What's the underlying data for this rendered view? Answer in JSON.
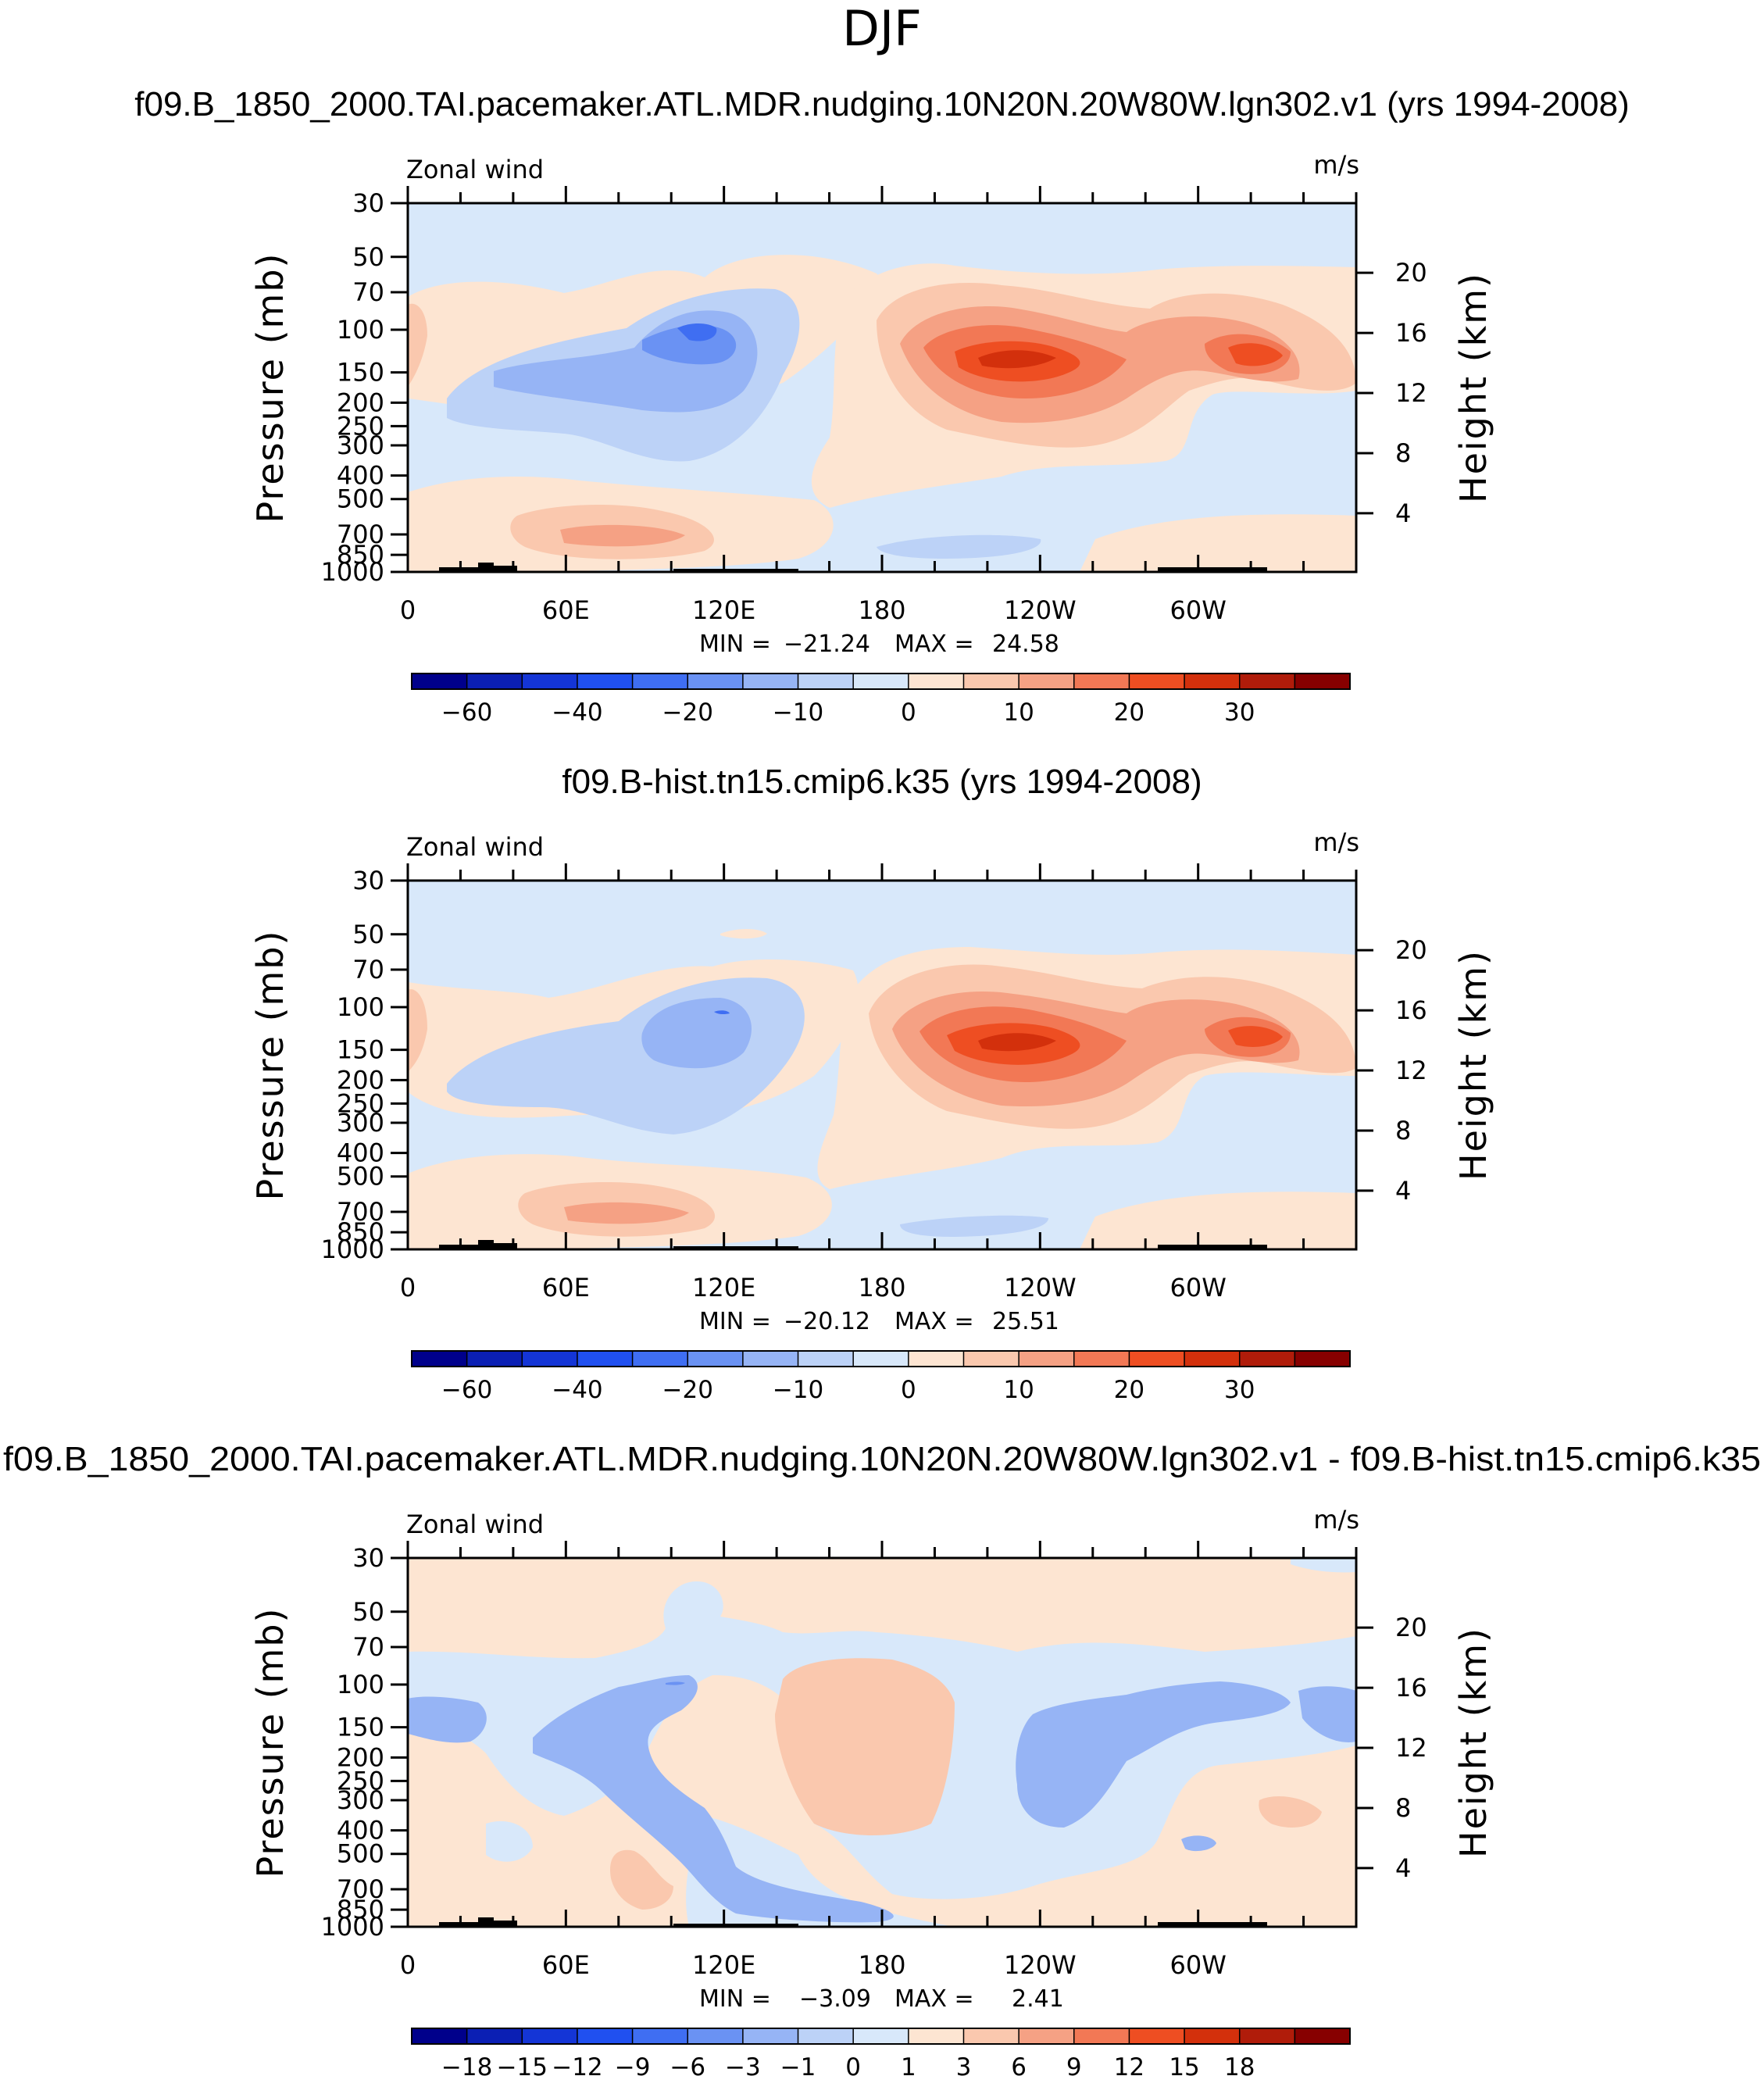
{
  "figure": {
    "title": "DJF"
  },
  "chart_data": [
    {
      "type": "contour",
      "case_title": "f09.B_1850_2000.TAI.pacemaker.ATL.MDR.nudging.10N20N.20W80W.lgn302.v1 (yrs 1994-2008)",
      "field": "Zonal wind",
      "units": "m/s",
      "xticks": [
        "0",
        "60E",
        "120E",
        "180",
        "120W",
        "60W"
      ],
      "ylabel": "Pressure (mb)",
      "yticks": [
        "30",
        "50",
        "70",
        "100",
        "150",
        "200",
        "250",
        "300",
        "400",
        "500",
        "700",
        "850",
        "1000"
      ],
      "ylim": [
        1000,
        30
      ],
      "right_label": "Height (km)",
      "right_ticks": [
        "20",
        "16",
        "12",
        "8",
        "4"
      ],
      "min_label": "MIN =",
      "min": "−21.24",
      "max_label": "MAX =",
      "max": "24.58",
      "levels": [
        -70,
        -60,
        -50,
        -40,
        -30,
        -20,
        -15,
        -10,
        -5,
        0,
        5,
        10,
        15,
        20,
        25,
        30,
        35
      ],
      "colorbar_labels": [
        {
          "text": "−60",
          "boundary": 1
        },
        {
          "text": "−40",
          "boundary": 3
        },
        {
          "text": "−20",
          "boundary": 5
        },
        {
          "text": "−10",
          "boundary": 7
        },
        {
          "text": "0",
          "boundary": 9
        },
        {
          "text": "10",
          "boundary": 11
        },
        {
          "text": "20",
          "boundary": 13
        },
        {
          "text": "30",
          "boundary": 15
        }
      ],
      "features": [
        {
          "name": "subtropical-jet-core",
          "lon": 258,
          "pressure": 150,
          "value": 24.58
        },
        {
          "name": "easterly-core",
          "lon": 116,
          "pressure": 110,
          "value": -21.24
        }
      ]
    },
    {
      "type": "contour",
      "case_title": "f09.B-hist.tn15.cmip6.k35 (yrs 1994-2008)",
      "field": "Zonal wind",
      "units": "m/s",
      "xticks": [
        "0",
        "60E",
        "120E",
        "180",
        "120W",
        "60W"
      ],
      "ylabel": "Pressure (mb)",
      "yticks": [
        "30",
        "50",
        "70",
        "100",
        "150",
        "200",
        "250",
        "300",
        "400",
        "500",
        "700",
        "850",
        "1000"
      ],
      "ylim": [
        1000,
        30
      ],
      "right_label": "Height (km)",
      "right_ticks": [
        "20",
        "16",
        "12",
        "8",
        "4"
      ],
      "min_label": "MIN =",
      "min": "−20.12",
      "max_label": "MAX =",
      "max": "25.51",
      "levels": [
        -70,
        -60,
        -50,
        -40,
        -30,
        -20,
        -15,
        -10,
        -5,
        0,
        5,
        10,
        15,
        20,
        25,
        30,
        35
      ],
      "colorbar_labels": [
        {
          "text": "−60",
          "boundary": 1
        },
        {
          "text": "−40",
          "boundary": 3
        },
        {
          "text": "−20",
          "boundary": 5
        },
        {
          "text": "−10",
          "boundary": 7
        },
        {
          "text": "0",
          "boundary": 9
        },
        {
          "text": "10",
          "boundary": 11
        },
        {
          "text": "20",
          "boundary": 13
        },
        {
          "text": "30",
          "boundary": 15
        }
      ],
      "features": [
        {
          "name": "subtropical-jet-core",
          "lon": 258,
          "pressure": 150,
          "value": 25.51
        },
        {
          "name": "easterly-core",
          "lon": 116,
          "pressure": 140,
          "value": -20.12
        }
      ]
    },
    {
      "type": "contour",
      "case_title": "f09.B_1850_2000.TAI.pacemaker.ATL.MDR.nudging.10N20N.20W80W.lgn302.v1 - f09.B-hist.tn15.cmip6.k35",
      "field": "Zonal wind",
      "units": "m/s",
      "xticks": [
        "0",
        "60E",
        "120E",
        "180",
        "120W",
        "60W"
      ],
      "ylabel": "Pressure (mb)",
      "yticks": [
        "30",
        "50",
        "70",
        "100",
        "150",
        "200",
        "250",
        "300",
        "400",
        "500",
        "700",
        "850",
        "1000"
      ],
      "ylim": [
        1000,
        30
      ],
      "right_label": "Height (km)",
      "right_ticks": [
        "20",
        "16",
        "12",
        "8",
        "4"
      ],
      "min_label": "MIN =",
      "min": "−3.09",
      "max_label": "MAX =",
      "max": "2.41",
      "levels": [
        -21,
        -18,
        -15,
        -12,
        -9,
        -6,
        -3,
        -1,
        0,
        1,
        3,
        6,
        9,
        12,
        15,
        18,
        21
      ],
      "colorbar_labels": [
        {
          "text": "−18",
          "boundary": 1
        },
        {
          "text": "−15",
          "boundary": 2
        },
        {
          "text": "−12",
          "boundary": 3
        },
        {
          "text": "−9",
          "boundary": 4
        },
        {
          "text": "−6",
          "boundary": 5
        },
        {
          "text": "−3",
          "boundary": 6
        },
        {
          "text": "−1",
          "boundary": 7
        },
        {
          "text": "0",
          "boundary": 8
        },
        {
          "text": "1",
          "boundary": 9
        },
        {
          "text": "3",
          "boundary": 10
        },
        {
          "text": "6",
          "boundary": 11
        },
        {
          "text": "9",
          "boundary": 12
        },
        {
          "text": "12",
          "boundary": 13
        },
        {
          "text": "15",
          "boundary": 14
        },
        {
          "text": "18",
          "boundary": 15
        }
      ],
      "features": [
        {
          "name": "positive-anomaly-center",
          "lon": 180,
          "pressure": 200,
          "value": 2.41
        },
        {
          "name": "negative-anomaly-center",
          "lon": 114,
          "pressure": 100,
          "value": -3.09
        }
      ]
    }
  ],
  "colorbar_colors": [
    "#00008b",
    "#0b1fb4",
    "#1435d6",
    "#2050f0",
    "#3f6ef2",
    "#6a92f3",
    "#96b4f5",
    "#bcd2f7",
    "#d8e8fa",
    "#fde5d2",
    "#fac8ae",
    "#f5a184",
    "#f27855",
    "#ee4e22",
    "#d3300c",
    "#b01c0a",
    "#870000"
  ]
}
